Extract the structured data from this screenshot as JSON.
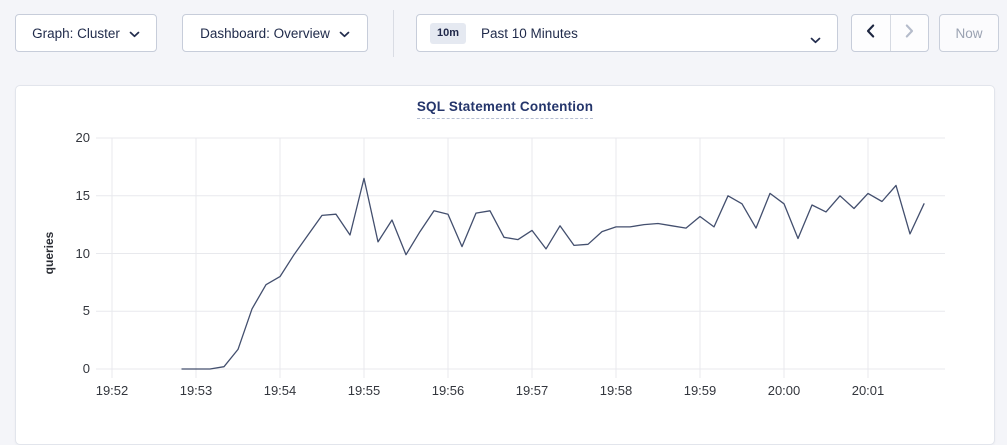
{
  "toolbar": {
    "graph_selector": {
      "label": "Graph: Cluster"
    },
    "dashboard_selector": {
      "label": "Dashboard: Overview"
    },
    "time_window": {
      "badge": "10m",
      "label": "Past 10 Minutes"
    },
    "now_button_label": "Now"
  },
  "chart_data": {
    "type": "line",
    "title": "SQL Statement Contention",
    "ylabel": "queries",
    "ylim": [
      0,
      20
    ],
    "yticks": [
      0,
      5,
      10,
      15,
      20
    ],
    "xticks": [
      "19:52",
      "19:53",
      "19:54",
      "19:55",
      "19:56",
      "19:57",
      "19:58",
      "19:59",
      "20:00",
      "20:01"
    ],
    "x_tick_interval": "1 minute",
    "grid": true,
    "legend": "none",
    "series": [
      {
        "name": "SQL Statement Contention",
        "x_unit": "seconds after 19:52:00",
        "points": [
          [
            50,
            0
          ],
          [
            60,
            0
          ],
          [
            70,
            0
          ],
          [
            80,
            0.2
          ],
          [
            90,
            1.7
          ],
          [
            100,
            5.2
          ],
          [
            110,
            7.3
          ],
          [
            120,
            8.0
          ],
          [
            130,
            9.9
          ],
          [
            140,
            11.6
          ],
          [
            150,
            13.3
          ],
          [
            160,
            13.4
          ],
          [
            170,
            11.6
          ],
          [
            180,
            16.5
          ],
          [
            190,
            11.0
          ],
          [
            200,
            12.9
          ],
          [
            210,
            9.9
          ],
          [
            220,
            11.9
          ],
          [
            230,
            13.7
          ],
          [
            240,
            13.4
          ],
          [
            250,
            10.6
          ],
          [
            260,
            13.5
          ],
          [
            270,
            13.7
          ],
          [
            280,
            11.4
          ],
          [
            290,
            11.2
          ],
          [
            300,
            12.0
          ],
          [
            310,
            10.4
          ],
          [
            320,
            12.4
          ],
          [
            330,
            10.7
          ],
          [
            340,
            10.8
          ],
          [
            350,
            11.9
          ],
          [
            360,
            12.3
          ],
          [
            370,
            12.3
          ],
          [
            380,
            12.5
          ],
          [
            390,
            12.6
          ],
          [
            400,
            12.4
          ],
          [
            410,
            12.2
          ],
          [
            420,
            13.2
          ],
          [
            430,
            12.3
          ],
          [
            440,
            15.0
          ],
          [
            450,
            14.3
          ],
          [
            460,
            12.2
          ],
          [
            470,
            15.2
          ],
          [
            480,
            14.3
          ],
          [
            490,
            11.3
          ],
          [
            500,
            14.2
          ],
          [
            510,
            13.6
          ],
          [
            520,
            15.0
          ],
          [
            530,
            13.9
          ],
          [
            540,
            15.2
          ],
          [
            550,
            14.5
          ],
          [
            560,
            15.9
          ],
          [
            570,
            11.7
          ],
          [
            580,
            14.3
          ]
        ]
      }
    ],
    "colors": {
      "line": "#434f6e",
      "grid": "#e8e9ed",
      "title": "#24356b",
      "axis_text": "#33363d",
      "page_bg": "#f4f5f9",
      "card_bg": "#ffffff"
    }
  }
}
